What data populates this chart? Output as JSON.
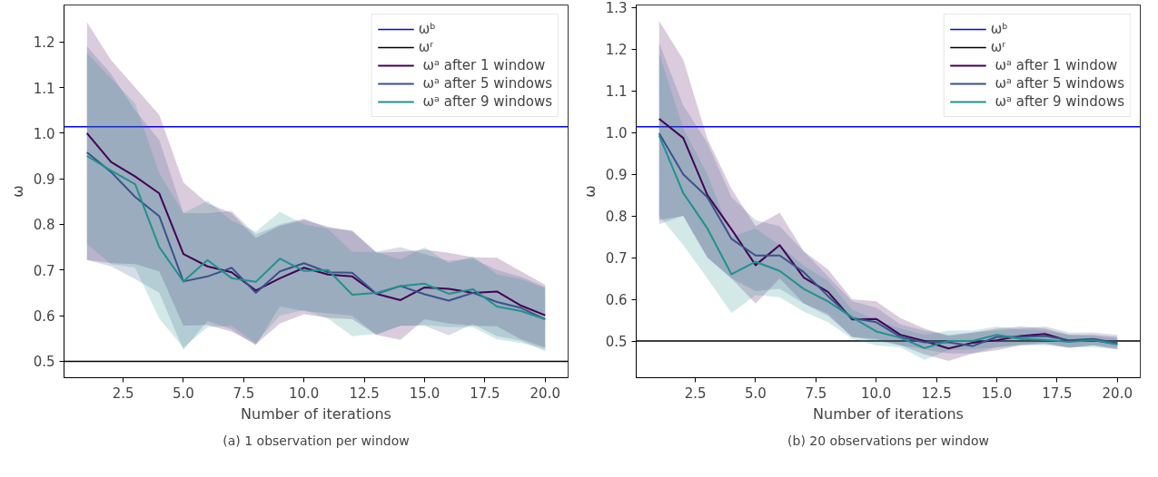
{
  "chart_data": [
    {
      "type": "line",
      "xlabel": "Number of iterations",
      "ylabel": "ω",
      "xlim": [
        0.05,
        20.95
      ],
      "ylim": [
        0.464,
        1.281
      ],
      "xticks": [
        {
          "value": 2.5,
          "label": "2.5"
        },
        {
          "value": 5,
          "label": "5.0"
        },
        {
          "value": 7.5,
          "label": "7.5"
        },
        {
          "value": 10,
          "label": "10.0"
        },
        {
          "value": 12.5,
          "label": "12.5"
        },
        {
          "value": 15,
          "label": "15.0"
        },
        {
          "value": 17.5,
          "label": "17.5"
        },
        {
          "value": 20,
          "label": "20.0"
        }
      ],
      "yticks": [
        0.5,
        0.6,
        0.7,
        0.8,
        0.9,
        {
          "value": 1.0,
          "label": "1.0"
        },
        1.1,
        1.2
      ],
      "grid": false,
      "legend": "top right",
      "marker": "none",
      "line_style": "solid",
      "x": [
        1,
        2,
        3,
        4,
        5,
        6,
        7,
        8,
        9,
        10,
        11,
        12,
        13,
        14,
        15,
        16,
        17,
        18,
        19,
        20
      ],
      "ref_lines": [
        {
          "axis": "y",
          "value": 1.014,
          "label": "ωᵇ",
          "color": "#0000ff"
        },
        {
          "axis": "y",
          "value": 0.5,
          "label": "ωʳ",
          "color": "#000000"
        }
      ],
      "annotations": [
        "(a) 1 observation per window"
      ],
      "series": [
        {
          "name": " ωᵃ after 1 window",
          "color": "#440154",
          "values": [
            1.0,
            0.937,
            0.905,
            0.868,
            0.735,
            0.708,
            0.695,
            0.655,
            0.682,
            0.705,
            0.69,
            0.686,
            0.648,
            0.634,
            0.662,
            0.659,
            0.65,
            0.653,
            0.622,
            0.601
          ],
          "upper": [
            1.243,
            1.16,
            1.1,
            1.04,
            0.892,
            0.846,
            0.825,
            0.77,
            0.797,
            0.81,
            0.795,
            0.785,
            0.738,
            0.74,
            0.745,
            0.738,
            0.728,
            0.727,
            0.697,
            0.668
          ],
          "lower": [
            0.722,
            0.715,
            0.713,
            0.697,
            0.578,
            0.58,
            0.565,
            0.537,
            0.583,
            0.603,
            0.595,
            0.592,
            0.558,
            0.547,
            0.592,
            0.583,
            0.578,
            0.577,
            0.548,
            0.53
          ]
        },
        {
          "name": " ωᵃ after 5 windows",
          "color": "#3b528b",
          "values": [
            0.958,
            0.915,
            0.86,
            0.818,
            0.675,
            0.686,
            0.705,
            0.65,
            0.697,
            0.715,
            0.695,
            0.694,
            0.648,
            0.665,
            0.647,
            0.633,
            0.65,
            0.63,
            0.617,
            0.592
          ],
          "upper": [
            1.19,
            1.13,
            1.05,
            0.985,
            0.825,
            0.825,
            0.83,
            0.778,
            0.8,
            0.813,
            0.792,
            0.787,
            0.74,
            0.75,
            0.735,
            0.72,
            0.725,
            0.7,
            0.685,
            0.663
          ],
          "lower": [
            0.722,
            0.708,
            0.68,
            0.65,
            0.525,
            0.588,
            0.57,
            0.535,
            0.62,
            0.61,
            0.605,
            0.6,
            0.558,
            0.578,
            0.578,
            0.557,
            0.582,
            0.555,
            0.545,
            0.522
          ]
        },
        {
          "name": " ωᵃ after 9 windows",
          "color": "#21918c",
          "values": [
            0.95,
            0.918,
            0.888,
            0.75,
            0.675,
            0.722,
            0.682,
            0.674,
            0.725,
            0.698,
            0.7,
            0.646,
            0.65,
            0.665,
            0.67,
            0.648,
            0.658,
            0.62,
            0.61,
            0.592
          ],
          "upper": [
            1.175,
            1.12,
            1.065,
            0.912,
            0.825,
            0.852,
            0.808,
            0.784,
            0.828,
            0.8,
            0.79,
            0.74,
            0.74,
            0.723,
            0.75,
            0.715,
            0.73,
            0.69,
            0.68,
            0.66
          ],
          "lower": [
            0.757,
            0.713,
            0.705,
            0.593,
            0.53,
            0.575,
            0.578,
            0.54,
            0.6,
            0.612,
            0.593,
            0.555,
            0.56,
            0.578,
            0.58,
            0.575,
            0.575,
            0.548,
            0.54,
            0.527
          ]
        }
      ]
    },
    {
      "type": "line",
      "xlabel": "Number of iterations",
      "ylabel": "ω",
      "xlim": [
        0.05,
        20.95
      ],
      "ylim": [
        0.412,
        1.306
      ],
      "xticks": [
        {
          "value": 2.5,
          "label": "2.5"
        },
        {
          "value": 5,
          "label": "5.0"
        },
        {
          "value": 7.5,
          "label": "7.5"
        },
        {
          "value": 10,
          "label": "10.0"
        },
        {
          "value": 12.5,
          "label": "12.5"
        },
        {
          "value": 15,
          "label": "15.0"
        },
        {
          "value": 17.5,
          "label": "17.5"
        },
        {
          "value": 20,
          "label": "20.0"
        }
      ],
      "yticks": [
        0.5,
        0.6,
        0.7,
        0.8,
        0.9,
        {
          "value": 1.0,
          "label": "1.0"
        },
        1.1,
        1.2,
        1.3
      ],
      "grid": false,
      "legend": "top right",
      "marker": "none",
      "line_style": "solid",
      "x": [
        1,
        2,
        3,
        4,
        5,
        6,
        7,
        8,
        9,
        10,
        11,
        12,
        13,
        14,
        15,
        16,
        17,
        18,
        19,
        20
      ],
      "ref_lines": [
        {
          "axis": "y",
          "value": 1.014,
          "label": "ωᵇ",
          "color": "#0000ff"
        },
        {
          "axis": "y",
          "value": 0.5,
          "label": "ωʳ",
          "color": "#000000"
        }
      ],
      "annotations": [
        "(b) 20 observations per window"
      ],
      "series": [
        {
          "name": " ωᵃ after 1 window",
          "color": "#440154",
          "values": [
            1.033,
            0.987,
            0.85,
            0.768,
            0.682,
            0.73,
            0.652,
            0.618,
            0.552,
            0.553,
            0.515,
            0.5,
            0.482,
            0.496,
            0.502,
            0.512,
            0.517,
            0.5,
            0.502,
            0.493
          ],
          "upper": [
            1.268,
            1.175,
            0.985,
            0.865,
            0.775,
            0.808,
            0.715,
            0.672,
            0.6,
            0.595,
            0.555,
            0.53,
            0.512,
            0.52,
            0.53,
            0.535,
            0.53,
            0.515,
            0.515,
            0.51
          ],
          "lower": [
            0.79,
            0.8,
            0.7,
            0.65,
            0.59,
            0.65,
            0.59,
            0.565,
            0.51,
            0.505,
            0.49,
            0.468,
            0.452,
            0.47,
            0.478,
            0.49,
            0.493,
            0.483,
            0.49,
            0.48
          ]
        },
        {
          "name": " ωᵃ after 5 windows",
          "color": "#3b528b",
          "values": [
            0.998,
            0.9,
            0.845,
            0.745,
            0.705,
            0.705,
            0.665,
            0.608,
            0.555,
            0.545,
            0.51,
            0.497,
            0.497,
            0.488,
            0.51,
            0.51,
            0.512,
            0.502,
            0.505,
            0.495
          ],
          "upper": [
            1.215,
            1.065,
            0.975,
            0.845,
            0.79,
            0.775,
            0.715,
            0.655,
            0.595,
            0.58,
            0.54,
            0.525,
            0.515,
            0.52,
            0.525,
            0.53,
            0.535,
            0.52,
            0.52,
            0.515
          ],
          "lower": [
            0.78,
            0.8,
            0.7,
            0.65,
            0.62,
            0.625,
            0.59,
            0.56,
            0.51,
            0.5,
            0.49,
            0.48,
            0.47,
            0.47,
            0.485,
            0.492,
            0.495,
            0.485,
            0.49,
            0.483
          ]
        },
        {
          "name": " ωᵃ after 9 windows",
          "color": "#21918c",
          "values": [
            0.993,
            0.855,
            0.77,
            0.66,
            0.69,
            0.668,
            0.625,
            0.595,
            0.557,
            0.523,
            0.508,
            0.483,
            0.5,
            0.5,
            0.515,
            0.505,
            0.503,
            0.498,
            0.502,
            0.492
          ],
          "upper": [
            1.19,
            1.01,
            0.9,
            0.75,
            0.77,
            0.73,
            0.68,
            0.645,
            0.575,
            0.55,
            0.53,
            0.515,
            0.525,
            0.525,
            0.535,
            0.528,
            0.525,
            0.515,
            0.512,
            0.505
          ],
          "lower": [
            0.8,
            0.73,
            0.65,
            0.567,
            0.61,
            0.605,
            0.57,
            0.545,
            0.505,
            0.49,
            0.485,
            0.455,
            0.478,
            0.48,
            0.485,
            0.49,
            0.49,
            0.485,
            0.485,
            0.48
          ]
        }
      ]
    }
  ]
}
